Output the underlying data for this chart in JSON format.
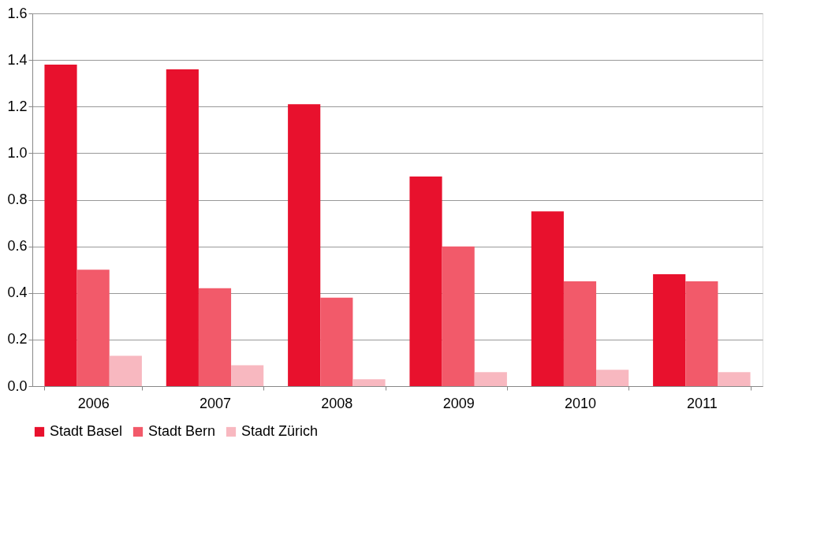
{
  "chart_data": {
    "type": "bar",
    "categories": [
      "2006",
      "2007",
      "2008",
      "2009",
      "2010",
      "2011"
    ],
    "series": [
      {
        "name": "Stadt Basel",
        "color": "#e8112d",
        "values": [
          1.38,
          1.36,
          1.21,
          0.9,
          0.75,
          0.48
        ]
      },
      {
        "name": "Stadt Bern",
        "color": "#f25a6a",
        "values": [
          0.5,
          0.42,
          0.38,
          0.6,
          0.45,
          0.45
        ]
      },
      {
        "name": "Stadt Zürich",
        "color": "#f8b8c0",
        "values": [
          0.13,
          0.09,
          0.03,
          0.06,
          0.07,
          0.06
        ]
      }
    ],
    "ylim": [
      0,
      1.6
    ],
    "yticks": [
      {
        "value": 0,
        "label": "0.0"
      },
      0.2,
      0.4,
      0.6,
      0.8,
      {
        "value": 1,
        "label": "1.0"
      },
      1.2,
      1.4,
      1.6
    ],
    "grid": "y",
    "legend": "bottom"
  }
}
